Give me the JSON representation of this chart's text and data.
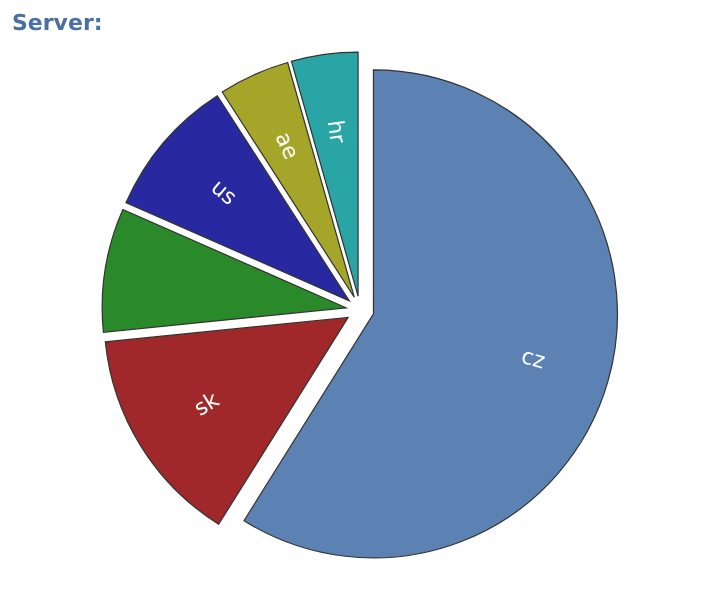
{
  "chart_data": {
    "type": "pie",
    "title": "Server:",
    "categories": [
      "cz",
      "sk",
      null,
      "us",
      "ae",
      "hr"
    ],
    "values": [
      58.9,
      14.5,
      8.2,
      9.3,
      4.7,
      4.4
    ],
    "colors": [
      "#5b82b2",
      "#a0282a",
      "#2a8a2a",
      "#2828a0",
      "#a5a52a",
      "#2aa5a5"
    ]
  }
}
